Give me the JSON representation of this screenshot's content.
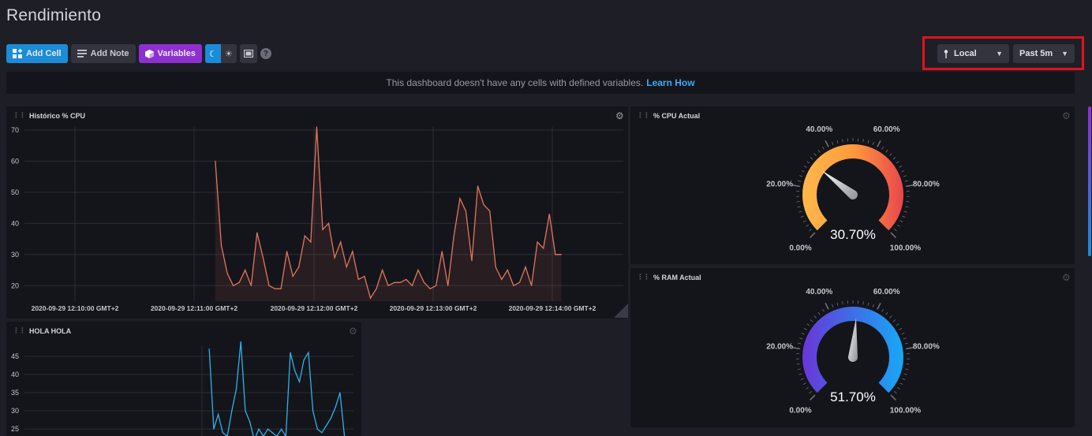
{
  "page": {
    "title": "Rendimiento"
  },
  "toolbar": {
    "add_cell": "Add Cell",
    "add_note": "Add Note",
    "variables": "Variables"
  },
  "timezone": {
    "label": "Local"
  },
  "timerange": {
    "label": "Past 5m"
  },
  "notice": {
    "text": "This dashboard doesn't have any cells with defined variables.",
    "link": "Learn How"
  },
  "colors": {
    "accent_blue": "#1a8cd8",
    "variables_purple": "#8e2fcf",
    "cpu_line": "#e2755e",
    "hola_line": "#2fb2e8",
    "highlight_red": "#e1121c"
  },
  "cells": {
    "cpu_history": {
      "title": "Histórico % CPU"
    },
    "hola": {
      "title": "HOLA HOLA"
    },
    "cpu_gauge": {
      "title": "% CPU Actual",
      "value": "30.70%"
    },
    "ram_gauge": {
      "title": "% RAM Actual",
      "value": "51.70%"
    }
  },
  "gauge_labels": [
    "0.00%",
    "20.00%",
    "40.00%",
    "60.00%",
    "80.00%",
    "100.00%"
  ],
  "chart_data": [
    {
      "type": "line",
      "title": "Histórico % CPU",
      "ylim": [
        15,
        71
      ],
      "yticks": [
        "20",
        "30",
        "40",
        "50",
        "60",
        "70"
      ],
      "xticks": [
        "2020-09-29 12:10:00 GMT+2",
        "2020-09-29 12:11:00 GMT+2",
        "2020-09-29 12:12:00 GMT+2",
        "2020-09-29 12:13:00 GMT+2",
        "2020-09-29 12:14:00 GMT+2"
      ],
      "x": [
        2.2,
        2.25,
        2.3,
        2.35,
        2.4,
        2.45,
        2.5,
        2.55,
        2.6,
        2.65,
        2.7,
        2.75,
        2.8,
        2.85,
        2.9,
        2.95,
        3.0,
        3.05,
        3.1,
        3.15,
        3.2,
        3.25,
        3.3,
        3.35,
        3.4,
        3.45,
        3.5,
        3.55,
        3.6,
        3.65,
        3.7,
        3.75,
        3.8,
        3.85,
        3.9,
        3.95,
        4.0,
        4.05,
        4.1,
        4.15,
        4.2,
        4.25,
        4.3,
        4.35,
        4.4,
        4.45,
        4.5,
        4.55,
        4.6,
        4.65,
        4.7,
        4.75,
        4.8,
        4.85,
        4.9,
        4.95,
        5.0,
        5.05,
        5.1
      ],
      "values": [
        60,
        33,
        24,
        20,
        21,
        25,
        20,
        37,
        29,
        20,
        19,
        19,
        31,
        23,
        26,
        36,
        34,
        71,
        38,
        40,
        29,
        34,
        26,
        31,
        22,
        23,
        16,
        19,
        25,
        20,
        21,
        21,
        22,
        20,
        25,
        21,
        19,
        20,
        31,
        20,
        36,
        48,
        44,
        28,
        52,
        46,
        44,
        26,
        22,
        25,
        20,
        21,
        26,
        20,
        34,
        32,
        43,
        30,
        30
      ],
      "grid": true
    },
    {
      "type": "line",
      "title": "HOLA HOLA",
      "ylim": [
        22,
        48
      ],
      "yticks": [
        "25",
        "30",
        "35",
        "40",
        "45"
      ],
      "x": [
        0,
        1,
        2,
        3,
        4,
        5,
        6,
        7,
        8,
        9,
        10,
        11,
        12,
        13,
        14,
        15,
        16,
        17,
        18,
        19,
        20,
        21,
        22,
        23,
        24,
        25,
        26,
        27,
        28,
        29,
        30
      ],
      "values": [
        47,
        25,
        29,
        24,
        23,
        30,
        36,
        49,
        30,
        27,
        22,
        25,
        23,
        25,
        24,
        23,
        25,
        23,
        46,
        41,
        38,
        44,
        46,
        30,
        25,
        24,
        26,
        28,
        31,
        35,
        23
      ],
      "grid": true
    },
    {
      "type": "gauge",
      "title": "% CPU Actual",
      "min": 0,
      "max": 100,
      "value": 30.7,
      "tick_labels": [
        "0.00%",
        "20.00%",
        "40.00%",
        "60.00%",
        "80.00%",
        "100.00%"
      ]
    },
    {
      "type": "gauge",
      "title": "% RAM Actual",
      "min": 0,
      "max": 100,
      "value": 51.7,
      "tick_labels": [
        "0.00%",
        "20.00%",
        "40.00%",
        "60.00%",
        "80.00%",
        "100.00%"
      ]
    }
  ]
}
